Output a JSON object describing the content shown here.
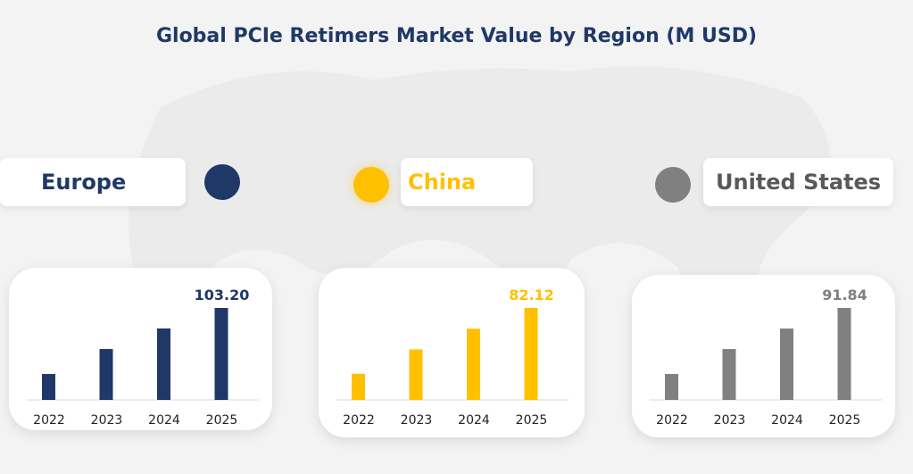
{
  "title": "Global PCIe Retimers Market Value by Region (M USD)",
  "chart_data": [
    {
      "type": "bar",
      "region": "Europe",
      "color": "#1f3868",
      "categories": [
        "2022",
        "2023",
        "2024",
        "2025"
      ],
      "values": [
        29.1,
        57.1,
        80.2,
        103.2
      ],
      "data_label": "103.20"
    },
    {
      "type": "bar",
      "region": "China",
      "color": "#ffc000",
      "categories": [
        "2022",
        "2023",
        "2024",
        "2025"
      ],
      "values": [
        23.3,
        45.1,
        63.6,
        82.12
      ],
      "data_label": "82.12"
    },
    {
      "type": "bar",
      "region": "United States",
      "color": "#808080",
      "categories": [
        "2022",
        "2023",
        "2024",
        "2025"
      ],
      "values": [
        25.9,
        50.8,
        71.3,
        91.84
      ],
      "data_label": "91.84"
    }
  ]
}
